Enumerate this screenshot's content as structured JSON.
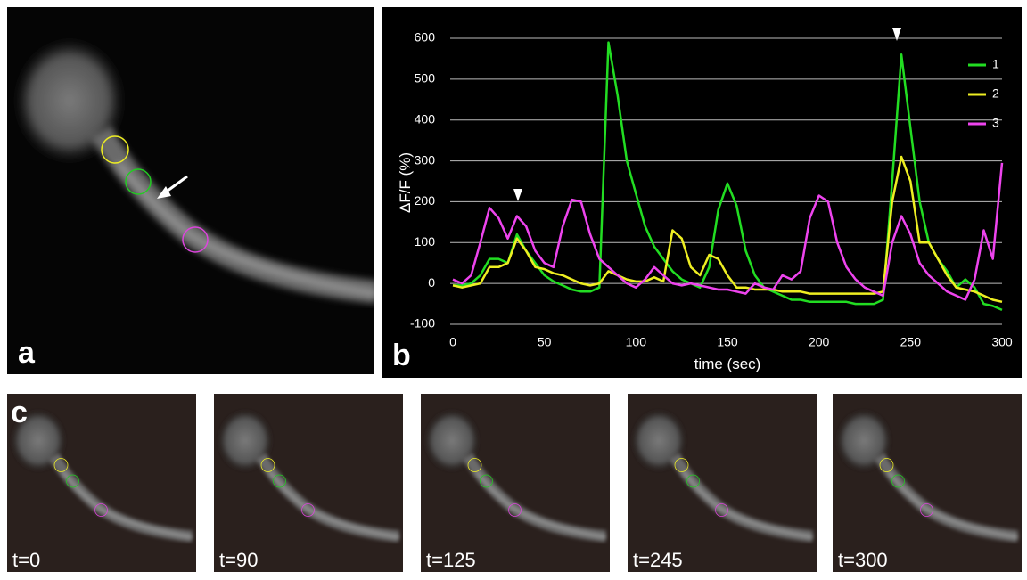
{
  "panels": [
    "a",
    "b",
    "c"
  ],
  "frames": [
    "t=0",
    "t=90",
    "t=125",
    "t=245",
    "t=300"
  ],
  "chart_data": {
    "type": "line",
    "y_label": "ΔF/F (%)",
    "x_label": "time (sec)",
    "x": [
      0,
      5,
      10,
      15,
      20,
      25,
      30,
      35,
      40,
      45,
      50,
      55,
      60,
      65,
      70,
      75,
      80,
      85,
      90,
      95,
      100,
      105,
      110,
      115,
      120,
      125,
      130,
      135,
      140,
      145,
      150,
      155,
      160,
      165,
      170,
      175,
      180,
      185,
      190,
      195,
      200,
      205,
      210,
      215,
      220,
      225,
      230,
      235,
      240,
      245,
      250,
      255,
      260,
      265,
      270,
      275,
      280,
      285,
      290,
      295,
      300
    ],
    "xlim": [
      0,
      300
    ],
    "xticks": [
      0,
      50,
      100,
      150,
      200,
      250,
      300
    ],
    "ylim": [
      -100,
      600
    ],
    "yticks": [
      -100,
      0,
      100,
      200,
      300,
      400,
      500,
      600
    ],
    "grid": true,
    "legend": "upper right",
    "series": [
      {
        "name": "1",
        "color": "#22dd22",
        "values": [
          -5,
          -5,
          0,
          20,
          60,
          60,
          50,
          120,
          80,
          50,
          20,
          5,
          -5,
          -15,
          -20,
          -20,
          -10,
          590,
          460,
          300,
          220,
          140,
          90,
          60,
          30,
          10,
          0,
          -10,
          40,
          180,
          245,
          190,
          80,
          20,
          -10,
          -20,
          -30,
          -40,
          -40,
          -45,
          -45,
          -45,
          -45,
          -45,
          -50,
          -50,
          -50,
          -40,
          250,
          560,
          380,
          200,
          100,
          60,
          30,
          -10,
          10,
          -10,
          -50,
          -55,
          -65
        ]
      },
      {
        "name": "2",
        "color": "#eeee22",
        "values": [
          -5,
          -10,
          -5,
          0,
          40,
          40,
          50,
          110,
          80,
          40,
          35,
          25,
          20,
          10,
          0,
          -5,
          0,
          30,
          20,
          10,
          5,
          5,
          15,
          5,
          130,
          110,
          40,
          20,
          70,
          60,
          20,
          -10,
          -10,
          -15,
          -15,
          -15,
          -20,
          -20,
          -20,
          -25,
          -25,
          -25,
          -25,
          -25,
          -25,
          -25,
          -25,
          -20,
          200,
          310,
          250,
          100,
          100,
          60,
          20,
          -10,
          -15,
          -20,
          -30,
          -40,
          -45
        ]
      },
      {
        "name": "3",
        "color": "#ee44ee",
        "values": [
          10,
          0,
          20,
          100,
          185,
          160,
          110,
          165,
          140,
          80,
          50,
          40,
          140,
          205,
          200,
          120,
          60,
          40,
          20,
          0,
          -10,
          10,
          40,
          20,
          0,
          -5,
          0,
          -5,
          -10,
          -15,
          -15,
          -20,
          -25,
          0,
          -10,
          -15,
          20,
          10,
          30,
          160,
          215,
          200,
          100,
          40,
          10,
          -10,
          -20,
          -30,
          100,
          165,
          120,
          50,
          20,
          0,
          -20,
          -30,
          -40,
          10,
          130,
          60,
          295
        ]
      }
    ]
  }
}
